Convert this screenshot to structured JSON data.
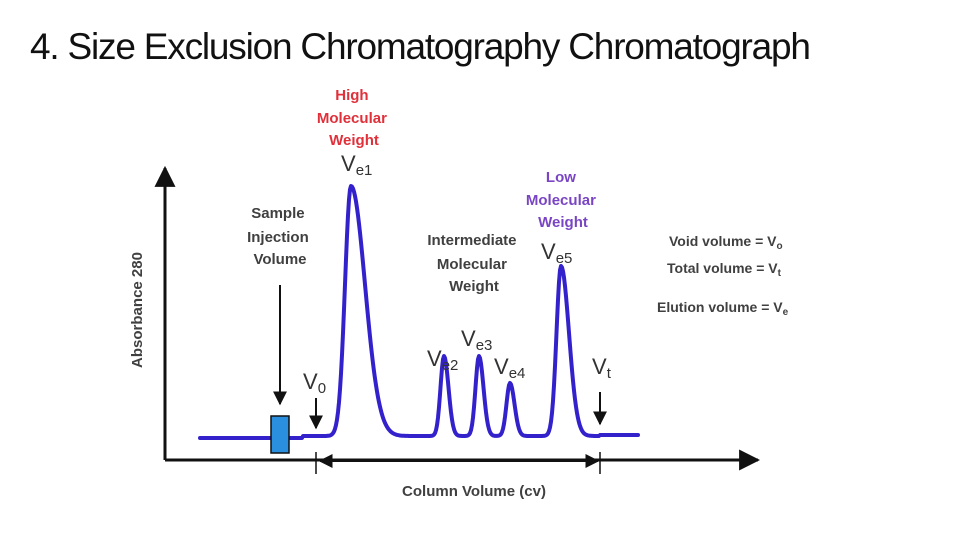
{
  "slide": {
    "title": "4. Size Exclusion Chromatography Chromatograph"
  },
  "axes": {
    "y_label": "Absorbance 280",
    "x_label": "Column Volume (cv)"
  },
  "annotations": {
    "high_mw": [
      "High",
      "Molecular",
      "Weight"
    ],
    "intermediate_mw": [
      "Intermediate",
      "Molecular",
      "Weight"
    ],
    "low_mw": [
      "Low",
      "Molecular",
      "Weight"
    ],
    "sample_injection": [
      "Sample",
      "Injection",
      "Volume"
    ]
  },
  "peaks": {
    "v0": {
      "main": "V",
      "sub": "0"
    },
    "ve1": {
      "main": "V",
      "sub": "e1"
    },
    "ve2": {
      "main": "V",
      "sub": "e2"
    },
    "ve3": {
      "main": "V",
      "sub": "e3"
    },
    "ve4": {
      "main": "V",
      "sub": "e4"
    },
    "ve5": {
      "main": "V",
      "sub": "e5"
    },
    "vt": {
      "main": "V",
      "sub": "t"
    }
  },
  "legend": {
    "void": {
      "text": "Void volume = V",
      "sub": "o"
    },
    "total": {
      "text": "Total volume = V",
      "sub": "t"
    },
    "elution": {
      "text": "Elution volume = V",
      "sub": "e"
    }
  },
  "colors": {
    "trace": "#3322cc",
    "injection_box": "#2b8fe0",
    "high_label": "#e0303a",
    "low_label": "#7a45c4",
    "axis": "#111111"
  }
}
